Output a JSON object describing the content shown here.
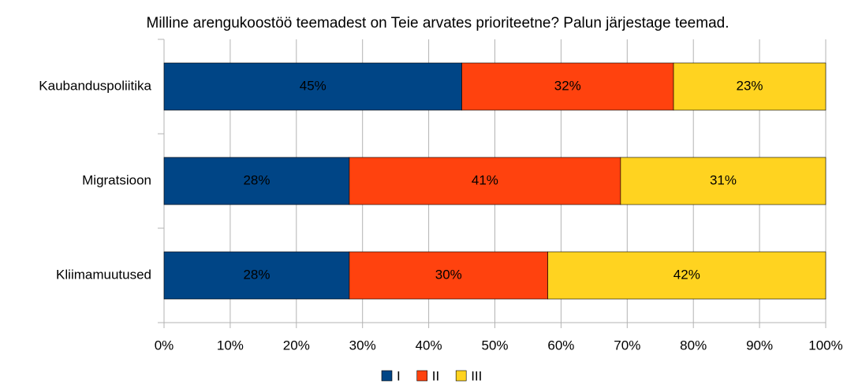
{
  "chart_data": {
    "type": "stacked_barh",
    "title": "Milline arengukoostöö teemadest on Teie arvates prioriteetne? Palun järjestage teemad.",
    "categories": [
      "Kaubanduspoliitika",
      "Migratsioon",
      "Kliimamuutused"
    ],
    "series": [
      {
        "name": "I",
        "color": "#004586",
        "values": [
          45,
          28,
          28
        ],
        "value_labels": [
          "45%",
          "28%",
          "28%"
        ]
      },
      {
        "name": "II",
        "color": "#ff420e",
        "values": [
          32,
          41,
          30
        ],
        "value_labels": [
          "32%",
          "41%",
          "30%"
        ]
      },
      {
        "name": "III",
        "color": "#ffd320",
        "values": [
          23,
          31,
          42
        ],
        "value_labels": [
          "23%",
          "31%",
          "42%"
        ]
      }
    ],
    "xlim": [
      0,
      100
    ],
    "xticks": [
      {
        "value": 0,
        "label": "0%"
      },
      {
        "value": 10,
        "label": "10%"
      },
      {
        "value": 20,
        "label": "20%"
      },
      {
        "value": 30,
        "label": "30%"
      },
      {
        "value": 40,
        "label": "40%"
      },
      {
        "value": 50,
        "label": "50%"
      },
      {
        "value": 60,
        "label": "60%"
      },
      {
        "value": 70,
        "label": "70%"
      },
      {
        "value": 80,
        "label": "80%"
      },
      {
        "value": 90,
        "label": "90%"
      },
      {
        "value": 100,
        "label": "100%"
      }
    ],
    "grid": true,
    "legend": "bottom"
  }
}
